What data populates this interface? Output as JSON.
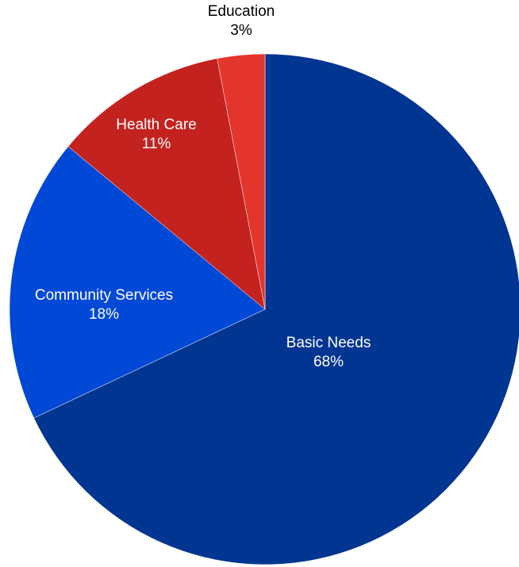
{
  "chart_data": {
    "type": "pie",
    "start_angle": "12 o'clock",
    "direction": "clockwise",
    "slices": [
      {
        "label": "Basic Needs",
        "value": 68,
        "value_label": "68%",
        "color": "#003591",
        "label_color": "#ffffff"
      },
      {
        "label": "Community Services",
        "value": 18,
        "value_label": "18%",
        "color": "#0048d6",
        "label_color": "#ffffff"
      },
      {
        "label": "Health Care",
        "value": 11,
        "value_label": "11%",
        "color": "#c4221f",
        "label_color": "#ffffff"
      },
      {
        "label": "Education",
        "value": 3,
        "value_label": "3%",
        "color": "#e4352c",
        "label_color": "#000000"
      }
    ]
  }
}
